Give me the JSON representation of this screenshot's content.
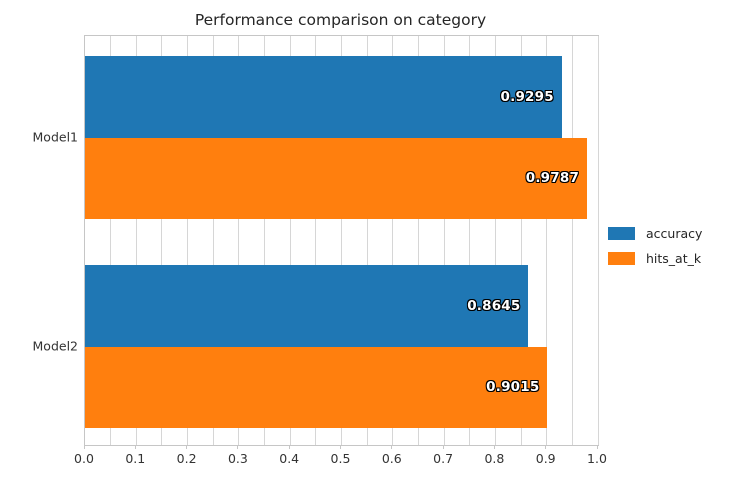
{
  "chart_data": {
    "type": "bar",
    "orientation": "horizontal",
    "title": "Performance comparison on category",
    "xlabel": "",
    "ylabel": "",
    "categories": [
      "Model1",
      "Model2"
    ],
    "series": [
      {
        "name": "accuracy",
        "color": "#1f77b4",
        "values": [
          0.9295,
          0.8645
        ],
        "value_labels": [
          "0.9295",
          "0.8645"
        ]
      },
      {
        "name": "hits_at_k",
        "color": "#ff7f0e",
        "values": [
          0.9787,
          0.9015
        ],
        "value_labels": [
          "0.9787",
          "0.9015"
        ]
      }
    ],
    "xlim": [
      0.0,
      1.0
    ],
    "x_tick_labels": [
      "0.0",
      "0.1",
      "0.2",
      "0.3",
      "0.4",
      "0.5",
      "0.6",
      "0.7",
      "0.8",
      "0.9",
      "1.0"
    ],
    "grid": {
      "axis": "x",
      "step": 0.05,
      "color": "#d6d6d6",
      "visible": true
    },
    "legend": {
      "position": "center-right",
      "frame": false
    }
  }
}
